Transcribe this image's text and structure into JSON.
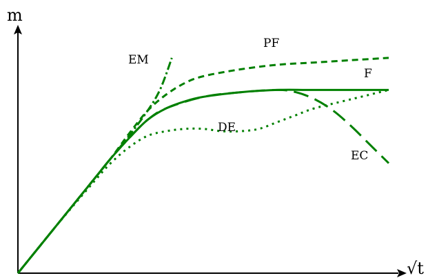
{
  "chart_data": {
    "type": "line",
    "xlabel": "√t",
    "ylabel": "m",
    "grid": false,
    "xlim": [
      0,
      1
    ],
    "ylim": [
      0,
      1
    ],
    "series": [
      {
        "name": "F",
        "color": "#008000",
        "style": "solid",
        "x": [
          0,
          0.1,
          0.2,
          0.25,
          0.3,
          0.35,
          0.4,
          0.45,
          0.5,
          0.6,
          0.7,
          0.8,
          1.0
        ],
        "y": [
          0,
          0.2,
          0.4,
          0.5,
          0.59,
          0.67,
          0.72,
          0.75,
          0.77,
          0.79,
          0.8,
          0.8,
          0.8
        ]
      },
      {
        "name": "PF",
        "color": "#008000",
        "style": "dashed",
        "x": [
          0,
          0.1,
          0.2,
          0.25,
          0.3,
          0.35,
          0.4,
          0.45,
          0.5,
          0.6,
          0.7,
          0.8,
          0.9,
          1.0
        ],
        "y": [
          0,
          0.2,
          0.4,
          0.5,
          0.61,
          0.71,
          0.78,
          0.83,
          0.86,
          0.89,
          0.91,
          0.92,
          0.93,
          0.94
        ]
      },
      {
        "name": "EM",
        "color": "#008000",
        "style": "dash-dot",
        "x": [
          0,
          0.1,
          0.2,
          0.25,
          0.3,
          0.35,
          0.38,
          0.4,
          0.415
        ],
        "y": [
          0,
          0.2,
          0.4,
          0.5,
          0.6,
          0.71,
          0.79,
          0.87,
          0.94
        ]
      },
      {
        "name": "DE",
        "color": "#008000",
        "style": "dotted",
        "x": [
          0,
          0.1,
          0.2,
          0.25,
          0.3,
          0.35,
          0.4,
          0.45,
          0.5,
          0.55,
          0.6,
          0.65,
          0.7,
          0.75,
          0.8,
          0.9,
          1.0
        ],
        "y": [
          0,
          0.2,
          0.39,
          0.48,
          0.55,
          0.6,
          0.62,
          0.63,
          0.63,
          0.62,
          0.62,
          0.63,
          0.66,
          0.69,
          0.72,
          0.76,
          0.8
        ]
      },
      {
        "name": "EC",
        "color": "#008000",
        "style": "long-dashed",
        "x": [
          0,
          0.1,
          0.2,
          0.25,
          0.3,
          0.35,
          0.4,
          0.5,
          0.6,
          0.7,
          0.75,
          0.8,
          0.85,
          0.9,
          0.95,
          1.0
        ],
        "y": [
          0,
          0.2,
          0.4,
          0.5,
          0.59,
          0.67,
          0.72,
          0.77,
          0.79,
          0.8,
          0.79,
          0.76,
          0.71,
          0.64,
          0.56,
          0.48
        ]
      }
    ]
  }
}
